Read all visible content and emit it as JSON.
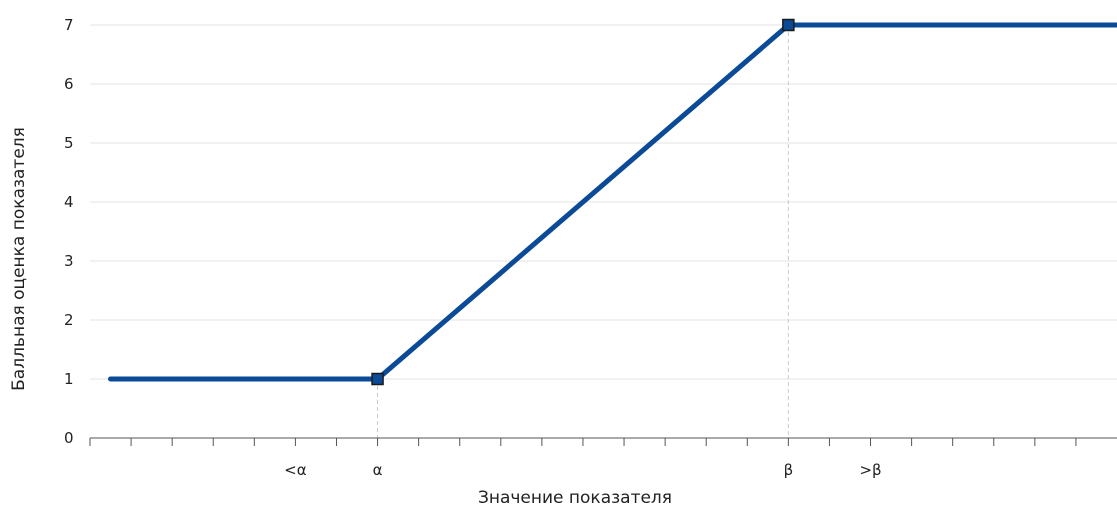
{
  "chart_data": {
    "type": "line",
    "xlabel": "Значение показателя",
    "ylabel": "Балльная оценка показателя",
    "ylim": [
      0,
      7
    ],
    "y_ticks": [
      0,
      1,
      2,
      3,
      4,
      5,
      6,
      7
    ],
    "x_category_labels": [
      {
        "label": "<α",
        "x": 1.5
      },
      {
        "label": "α",
        "x": 2.5
      },
      {
        "label": "β",
        "x": 7.5
      },
      {
        "label": ">β",
        "x": 8.5
      }
    ],
    "xlim": [
      -1,
      11.5
    ],
    "x_minor_ticks": 25,
    "grid": true,
    "color": "#0b4a96",
    "series": [
      {
        "points": [
          [
            -0.75,
            1
          ],
          [
            2.5,
            1
          ],
          [
            7.5,
            7
          ],
          [
            11.5,
            7
          ]
        ],
        "markers": [
          [
            2.5,
            1
          ],
          [
            7.5,
            7
          ]
        ]
      }
    ]
  }
}
